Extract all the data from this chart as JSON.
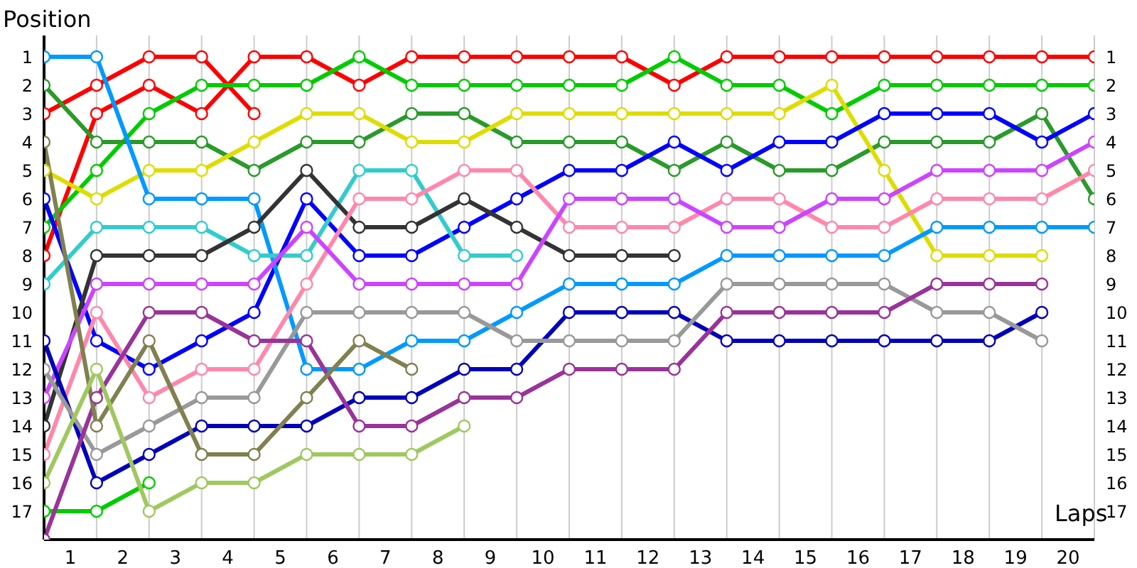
{
  "chart_data": {
    "type": "line",
    "xlabel": "Laps",
    "ylabel": "Position",
    "marker": "circle",
    "line_style": "solid",
    "grid": true,
    "x": [
      0,
      1,
      2,
      3,
      4,
      5,
      6,
      7,
      8,
      9,
      10,
      11,
      12,
      13,
      14,
      15,
      16,
      17,
      18,
      19,
      20
    ],
    "xlim": [
      0,
      20
    ],
    "xticks": [
      {
        "value": 0.5,
        "label": "1"
      },
      {
        "value": 1,
        "label": null
      },
      {
        "value": 1.5,
        "label": "2"
      },
      {
        "value": 2,
        "label": null
      },
      {
        "value": 2.5,
        "label": "3"
      },
      {
        "value": 3,
        "label": null
      },
      {
        "value": 3.5,
        "label": "4"
      },
      {
        "value": 4,
        "label": null
      },
      {
        "value": 4.5,
        "label": "5"
      },
      {
        "value": 5,
        "label": null
      },
      {
        "value": 5.5,
        "label": "6"
      },
      {
        "value": 6,
        "label": null
      },
      {
        "value": 6.5,
        "label": "7"
      },
      {
        "value": 7,
        "label": null
      },
      {
        "value": 7.5,
        "label": "8"
      },
      {
        "value": 8,
        "label": null
      },
      {
        "value": 8.5,
        "label": "9"
      },
      {
        "value": 9,
        "label": null
      },
      {
        "value": 9.5,
        "label": "10"
      },
      {
        "value": 10,
        "label": null
      },
      {
        "value": 10.5,
        "label": "11"
      },
      {
        "value": 11,
        "label": null
      },
      {
        "value": 11.5,
        "label": "12"
      },
      {
        "value": 12,
        "label": null
      },
      {
        "value": 12.5,
        "label": "13"
      },
      {
        "value": 13,
        "label": null
      },
      {
        "value": 13.5,
        "label": "14"
      },
      {
        "value": 14,
        "label": null
      },
      {
        "value": 14.5,
        "label": "15"
      },
      {
        "value": 15,
        "label": null
      },
      {
        "value": 15.5,
        "label": "16"
      },
      {
        "value": 16,
        "label": null
      },
      {
        "value": 16.5,
        "label": "17"
      },
      {
        "value": 17,
        "label": null
      },
      {
        "value": 17.5,
        "label": "18"
      },
      {
        "value": 18,
        "label": null
      },
      {
        "value": 18.5,
        "label": "19"
      },
      {
        "value": 19,
        "label": null
      },
      {
        "value": 19.5,
        "label": "20"
      },
      {
        "value": 20,
        "label": null
      }
    ],
    "ylim": [
      18,
      0.25
    ],
    "yticks": [
      1,
      2,
      3,
      4,
      5,
      6,
      7,
      8,
      9,
      10,
      11,
      12,
      13,
      14,
      15,
      16,
      17
    ],
    "y2lim": [
      18,
      0.25
    ],
    "y2ticks": [
      1,
      2,
      3,
      4,
      5,
      6,
      7,
      8,
      9,
      10,
      11,
      12,
      13,
      14,
      15,
      16,
      17
    ],
    "series": [
      {
        "color": "#ff0000",
        "values": [
          8,
          3,
          2,
          3,
          1,
          1,
          2,
          1,
          1,
          1,
          1,
          1,
          2,
          1,
          1,
          1,
          1,
          1,
          1,
          1,
          1
        ]
      },
      {
        "color": "#ff0000",
        "values": [
          3,
          2,
          1,
          1,
          3,
          null,
          null,
          null,
          null,
          null,
          null,
          null,
          null,
          null,
          null,
          null,
          null,
          null,
          null,
          null,
          null
        ]
      },
      {
        "color": "#00cc00",
        "values": [
          7,
          5,
          3,
          2,
          2,
          2,
          1,
          2,
          2,
          2,
          2,
          2,
          1,
          2,
          2,
          3,
          2,
          2,
          2,
          2,
          2
        ]
      },
      {
        "color": "#00cc00",
        "values": [
          17,
          17,
          16,
          null,
          null,
          null,
          null,
          null,
          null,
          null,
          null,
          null,
          null,
          null,
          null,
          null,
          null,
          null,
          null,
          null,
          null
        ]
      },
      {
        "color": "#2a9a2a",
        "values": [
          2,
          4,
          4,
          4,
          5,
          4,
          4,
          3,
          3,
          4,
          4,
          4,
          5,
          4,
          5,
          5,
          4,
          4,
          4,
          3,
          6
        ]
      },
      {
        "color": "#dddd00",
        "values": [
          5,
          6,
          5,
          5,
          4,
          3,
          3,
          4,
          4,
          3,
          3,
          3,
          3,
          3,
          3,
          2,
          5,
          8,
          8,
          8,
          null
        ]
      },
      {
        "color": "#0000ff",
        "values": [
          6,
          11,
          12,
          11,
          10,
          6,
          8,
          8,
          7,
          6,
          5,
          5,
          4,
          5,
          4,
          4,
          3,
          3,
          3,
          4,
          3
        ]
      },
      {
        "color": "#0099ff",
        "values": [
          1,
          1,
          6,
          6,
          6,
          12,
          12,
          11,
          11,
          10,
          9,
          9,
          9,
          8,
          8,
          8,
          8,
          7,
          7,
          7,
          7
        ]
      },
      {
        "color": "#33cccc",
        "values": [
          9,
          7,
          7,
          7,
          8,
          8,
          5,
          5,
          8,
          8,
          null,
          null,
          null,
          null,
          null,
          null,
          null,
          null,
          null,
          null,
          null
        ]
      },
      {
        "color": "#333333",
        "values": [
          14,
          8,
          8,
          8,
          7,
          5,
          7,
          7,
          6,
          7,
          8,
          8,
          8,
          null,
          null,
          null,
          null,
          null,
          null,
          null,
          null
        ]
      },
      {
        "color": "#ff88aa",
        "values": [
          15,
          10,
          13,
          12,
          12,
          9,
          6,
          6,
          5,
          5,
          7,
          7,
          7,
          6,
          6,
          7,
          7,
          6,
          6,
          6,
          5
        ]
      },
      {
        "color": "#cc44ff",
        "values": [
          13,
          9,
          9,
          9,
          9,
          7,
          9,
          9,
          9,
          9,
          6,
          6,
          6,
          7,
          7,
          6,
          6,
          5,
          5,
          5,
          4
        ]
      },
      {
        "color": "#0000bb",
        "values": [
          11,
          16,
          15,
          14,
          14,
          14,
          13,
          13,
          12,
          12,
          10,
          10,
          10,
          11,
          11,
          11,
          11,
          11,
          11,
          10,
          null
        ]
      },
      {
        "color": "#999999",
        "values": [
          12,
          15,
          14,
          13,
          13,
          10,
          10,
          10,
          10,
          11,
          11,
          11,
          11,
          9,
          9,
          9,
          9,
          10,
          10,
          11,
          null
        ]
      },
      {
        "color": "#993399",
        "values": [
          18,
          13,
          10,
          10,
          11,
          11,
          14,
          14,
          13,
          13,
          12,
          12,
          12,
          10,
          10,
          10,
          10,
          9,
          9,
          9,
          null
        ]
      },
      {
        "color": "#808050",
        "values": [
          4,
          14,
          11,
          15,
          15,
          13,
          11,
          12,
          null,
          null,
          null,
          null,
          null,
          null,
          null,
          null,
          null,
          null,
          null,
          null,
          null
        ]
      },
      {
        "color": "#a0c860",
        "values": [
          16,
          12,
          17,
          16,
          16,
          15,
          15,
          15,
          14,
          null,
          null,
          null,
          null,
          null,
          null,
          null,
          null,
          null,
          null,
          null,
          null
        ]
      }
    ]
  }
}
